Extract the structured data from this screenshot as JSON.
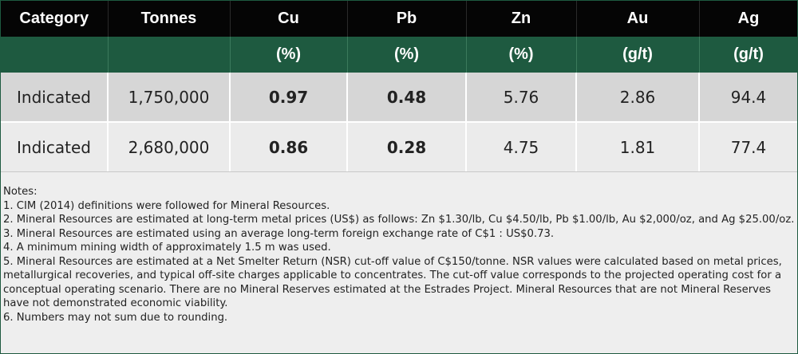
{
  "table": {
    "headers": [
      "Category",
      "Tonnes",
      "Cu",
      "Pb",
      "Zn",
      "Au",
      "Ag"
    ],
    "units": [
      "",
      "",
      "(%)",
      "(%)",
      "(%)",
      "(g/t)",
      "(g/t)"
    ],
    "rows": [
      [
        "Indicated",
        "1,750,000",
        "0.97",
        "0.48",
        "5.76",
        "2.86",
        "94.4"
      ],
      [
        "Indicated",
        "2,680,000",
        "0.86",
        "0.28",
        "4.75",
        "1.81",
        "77.4"
      ]
    ]
  },
  "notes": {
    "title": "Notes:",
    "items": [
      "1. CIM (2014) definitions were followed for Mineral Resources.",
      "2. Mineral Resources are estimated at long-term metal prices (US$) as follows: Zn $1.30/lb, Cu $4.50/lb, Pb $1.00/lb, Au $2,000/oz, and Ag $25.00/oz.",
      "3. Mineral Resources are estimated using an average long-term foreign exchange rate of C$1 : US$0.73.",
      "4. A minimum mining width of approximately 1.5 m was used.",
      "5. Mineral Resources are estimated at a Net Smelter Return (NSR) cut-off value of C$150/tonne. NSR values were calculated based on metal prices, metallurgical recoveries, and typical off-site charges applicable to concentrates. The cut-off value corresponds to the projected operating cost for a conceptual operating scenario. There are no Mineral Reserves estimated at the Estrades Project. Mineral Resources that are not Mineral Reserves have not demonstrated economic viability.",
      "6. Numbers may not sum due to rounding."
    ]
  },
  "colors": {
    "header_bg": "#050505",
    "units_bg": "#1e5a40",
    "row1_bg": "#d6d6d6",
    "row2_bg": "#ebebeb",
    "notes_bg": "#eeeeee"
  }
}
